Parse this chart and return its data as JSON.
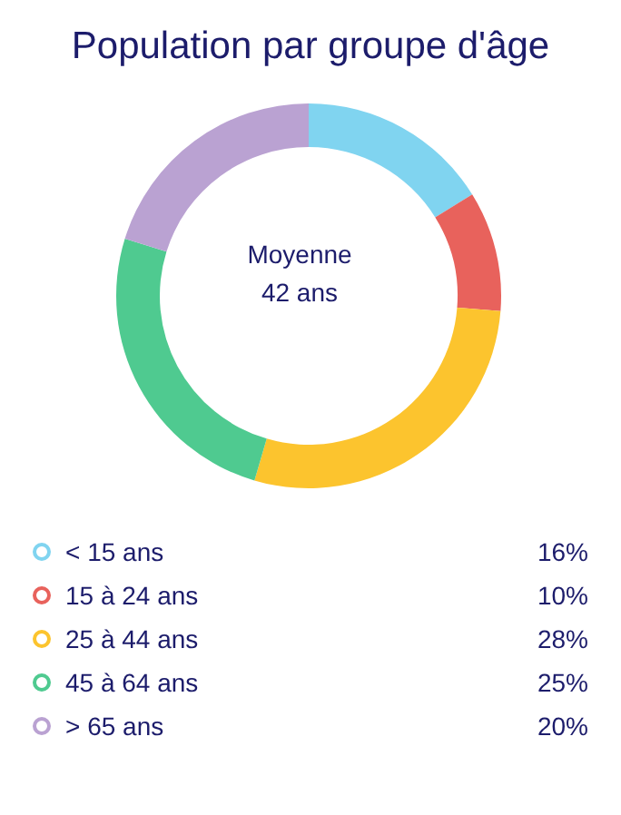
{
  "chart_data": {
    "type": "donut",
    "title": "Population par groupe d'âge",
    "categories": [
      "< 15 ans",
      "15 à 24 ans",
      "25 à 44 ans",
      "45 à 64 ans",
      "> 65 ans"
    ],
    "values": [
      16,
      10,
      28,
      25,
      20
    ],
    "value_labels": [
      "16%",
      "10%",
      "28%",
      "25%",
      "20%"
    ],
    "colors": [
      "#80d4f0",
      "#e8625c",
      "#fcc42e",
      "#4fca90",
      "#baa2d2"
    ],
    "annotations": [
      "Moyenne",
      "42 ans"
    ],
    "legend": "bottom"
  }
}
